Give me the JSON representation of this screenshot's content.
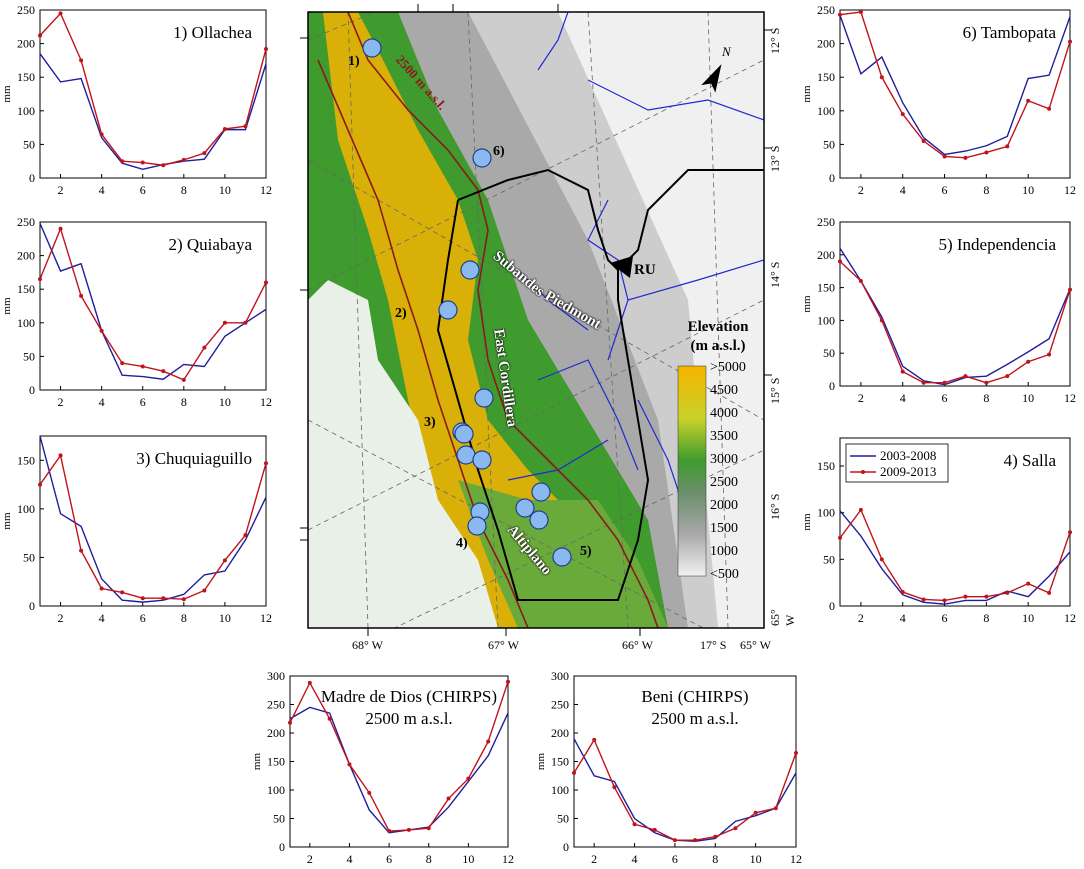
{
  "figure": {
    "panels": [
      {
        "id": "p1",
        "title": "1) Ollachea",
        "ylabel": "mm",
        "ylim": [
          0,
          250
        ],
        "yticks": [
          0,
          50,
          100,
          150,
          200,
          250
        ],
        "xticks": [
          2,
          4,
          6,
          8,
          10,
          12
        ],
        "title_pos": "inside-right"
      },
      {
        "id": "p2",
        "title": "2) Quiabaya",
        "ylabel": "mm",
        "ylim": [
          0,
          250
        ],
        "yticks": [
          0,
          50,
          100,
          150,
          200,
          250
        ],
        "xticks": [
          2,
          4,
          6,
          8,
          10,
          12
        ],
        "title_pos": "inside-right"
      },
      {
        "id": "p3",
        "title": "3) Chuquiaguillo",
        "ylabel": "mm",
        "ylim": [
          0,
          175
        ],
        "yticks": [
          0,
          50,
          100,
          150
        ],
        "xticks": [
          2,
          4,
          6,
          8,
          10,
          12
        ],
        "title_pos": "inside-right"
      },
      {
        "id": "p6",
        "title": "6) Tambopata",
        "ylabel": "mm",
        "ylim": [
          0,
          250
        ],
        "yticks": [
          0,
          50,
          100,
          150,
          200,
          250
        ],
        "xticks": [
          2,
          4,
          6,
          8,
          10,
          12
        ],
        "title_pos": "inside-right"
      },
      {
        "id": "p5",
        "title": "5) Independencia",
        "ylabel": "mm",
        "ylim": [
          0,
          250
        ],
        "yticks": [
          0,
          50,
          100,
          150,
          200,
          250
        ],
        "xticks": [
          2,
          4,
          6,
          8,
          10,
          12
        ],
        "title_pos": "inside-right"
      },
      {
        "id": "p4",
        "title": "4) Salla",
        "ylabel": "mm",
        "ylim": [
          0,
          180
        ],
        "yticks": [
          0,
          50,
          100,
          150
        ],
        "xticks": [
          2,
          4,
          6,
          8,
          10,
          12
        ],
        "title_pos": "inside-right"
      },
      {
        "id": "pmd",
        "title": "Madre de Dios (CHIRPS)",
        "subtitle": "2500 m a.s.l.",
        "ylabel": "mm",
        "ylim": [
          0,
          300
        ],
        "yticks": [
          0,
          50,
          100,
          150,
          200,
          250,
          300
        ],
        "xticks": [
          2,
          4,
          6,
          8,
          10,
          12
        ],
        "title_pos": "inside-center"
      },
      {
        "id": "pbe",
        "title": "Beni (CHIRPS)",
        "subtitle": "2500 m a.s.l.",
        "ylabel": "mm",
        "ylim": [
          0,
          300
        ],
        "yticks": [
          0,
          50,
          100,
          150,
          200,
          250,
          300
        ],
        "xticks": [
          2,
          4,
          6,
          8,
          10,
          12
        ],
        "title_pos": "inside-center"
      }
    ],
    "legend": {
      "entries": [
        "2003-2008",
        "2009-2013"
      ],
      "placement": "top-left of 4) Salla panel"
    },
    "colors": {
      "series_a": "#1f1f9e",
      "series_b": "#c0141c"
    },
    "map": {
      "legend_title_1": "Elevation",
      "legend_title_2": "(m a.s.l.)",
      "elevation_labels": [
        ">5000",
        "4500",
        "4000",
        "3500",
        "3000",
        "2500",
        "2000",
        "1500",
        "1000",
        "<500"
      ],
      "region_labels": [
        "Subandes",
        "Piedmont",
        "East Cordillera",
        "Altiplano"
      ],
      "contour_label": "2500 m a.s.l.",
      "station_labels": [
        "1)",
        "2)",
        "3)",
        "4)",
        "5)",
        "6)"
      ],
      "outlet_label": "RU",
      "north_label": "N",
      "lat_labels": [
        "12° S",
        "13° S",
        "14° S",
        "15° S",
        "16° S",
        "17° S",
        "65° W"
      ],
      "lon_labels": [
        "68° W",
        "67° W",
        "66° W",
        "65° W"
      ],
      "colors": {
        "high": "#f5b400",
        "mid": "#3f9b2e",
        "low": "#9a9a9a",
        "river": "#1f2bd0",
        "station": "#8ab9f0",
        "contour": "#8b1a1a",
        "basin": "#000000"
      }
    }
  },
  "chart_data": [
    {
      "type": "line",
      "title": "1) Ollachea",
      "xlabel": "",
      "ylabel": "mm",
      "ylim": [
        0,
        250
      ],
      "x": [
        1,
        2,
        3,
        4,
        5,
        6,
        7,
        8,
        9,
        10,
        11,
        12
      ],
      "series": [
        {
          "name": "2003-2008",
          "values": [
            185,
            143,
            148,
            60,
            22,
            13,
            20,
            25,
            28,
            72,
            72,
            170
          ]
        },
        {
          "name": "2009-2013",
          "values": [
            212,
            245,
            175,
            65,
            25,
            23,
            19,
            27,
            37,
            73,
            77,
            192
          ]
        }
      ]
    },
    {
      "type": "line",
      "title": "2) Quiabaya",
      "xlabel": "",
      "ylabel": "mm",
      "ylim": [
        0,
        250
      ],
      "x": [
        1,
        2,
        3,
        4,
        5,
        6,
        7,
        8,
        9,
        10,
        11,
        12
      ],
      "series": [
        {
          "name": "2003-2008",
          "values": [
            248,
            177,
            188,
            88,
            22,
            20,
            16,
            38,
            35,
            80,
            100,
            120
          ]
        },
        {
          "name": "2009-2013",
          "values": [
            165,
            240,
            140,
            88,
            40,
            35,
            28,
            15,
            63,
            100,
            100,
            160
          ]
        }
      ]
    },
    {
      "type": "line",
      "title": "3) Chuquiaguillo",
      "xlabel": "",
      "ylabel": "mm",
      "ylim": [
        0,
        175
      ],
      "x": [
        1,
        2,
        3,
        4,
        5,
        6,
        7,
        8,
        9,
        10,
        11,
        12
      ],
      "series": [
        {
          "name": "2003-2008",
          "values": [
            175,
            95,
            82,
            28,
            6,
            4,
            6,
            12,
            32,
            36,
            68,
            112
          ]
        },
        {
          "name": "2009-2013",
          "values": [
            125,
            155,
            57,
            18,
            14,
            8,
            8,
            7,
            16,
            47,
            73,
            147
          ]
        }
      ]
    },
    {
      "type": "line",
      "title": "6) Tambopata",
      "xlabel": "",
      "ylabel": "mm",
      "ylim": [
        0,
        250
      ],
      "x": [
        1,
        2,
        3,
        4,
        5,
        6,
        7,
        8,
        9,
        10,
        11,
        12
      ],
      "series": [
        {
          "name": "2003-2008",
          "values": [
            242,
            155,
            180,
            112,
            60,
            35,
            40,
            48,
            62,
            148,
            153,
            240
          ]
        },
        {
          "name": "2009-2013",
          "values": [
            243,
            247,
            150,
            95,
            55,
            32,
            30,
            38,
            47,
            115,
            103,
            203
          ]
        }
      ]
    },
    {
      "type": "line",
      "title": "5) Independencia",
      "xlabel": "",
      "ylabel": "mm",
      "ylim": [
        0,
        250
      ],
      "x": [
        1,
        2,
        3,
        4,
        5,
        6,
        7,
        8,
        9,
        10,
        11,
        12
      ],
      "series": [
        {
          "name": "2003-2008",
          "values": [
            210,
            160,
            105,
            30,
            8,
            2,
            13,
            15,
            33,
            52,
            72,
            148
          ]
        },
        {
          "name": "2009-2013",
          "values": [
            190,
            160,
            100,
            22,
            5,
            5,
            15,
            5,
            15,
            37,
            48,
            147
          ]
        }
      ]
    },
    {
      "type": "line",
      "title": "4) Salla",
      "xlabel": "",
      "ylabel": "mm",
      "ylim": [
        0,
        180
      ],
      "x": [
        1,
        2,
        3,
        4,
        5,
        6,
        7,
        8,
        9,
        10,
        11,
        12
      ],
      "series": [
        {
          "name": "2003-2008",
          "values": [
            102,
            75,
            40,
            12,
            4,
            2,
            6,
            6,
            16,
            10,
            32,
            58
          ]
        },
        {
          "name": "2009-2013",
          "values": [
            73,
            103,
            50,
            15,
            7,
            6,
            10,
            10,
            14,
            24,
            14,
            79
          ]
        }
      ]
    },
    {
      "type": "line",
      "title": "Madre de Dios (CHIRPS)",
      "subtitle": "2500 m a.s.l.",
      "xlabel": "",
      "ylabel": "mm",
      "ylim": [
        0,
        300
      ],
      "x": [
        1,
        2,
        3,
        4,
        5,
        6,
        7,
        8,
        9,
        10,
        11,
        12
      ],
      "series": [
        {
          "name": "2003-2008",
          "values": [
            225,
            245,
            235,
            145,
            65,
            25,
            30,
            35,
            70,
            115,
            160,
            235
          ]
        },
        {
          "name": "2009-2013",
          "values": [
            218,
            288,
            225,
            145,
            95,
            28,
            30,
            33,
            85,
            120,
            185,
            290
          ]
        }
      ]
    },
    {
      "type": "line",
      "title": "Beni (CHIRPS)",
      "subtitle": "2500 m a.s.l.",
      "xlabel": "",
      "ylabel": "mm",
      "ylim": [
        0,
        300
      ],
      "x": [
        1,
        2,
        3,
        4,
        5,
        6,
        7,
        8,
        9,
        10,
        11,
        12
      ],
      "series": [
        {
          "name": "2003-2008",
          "values": [
            190,
            125,
            115,
            50,
            25,
            12,
            10,
            15,
            45,
            55,
            68,
            130
          ]
        },
        {
          "name": "2009-2013",
          "values": [
            130,
            188,
            105,
            40,
            30,
            12,
            12,
            18,
            33,
            60,
            68,
            165
          ]
        }
      ]
    }
  ]
}
